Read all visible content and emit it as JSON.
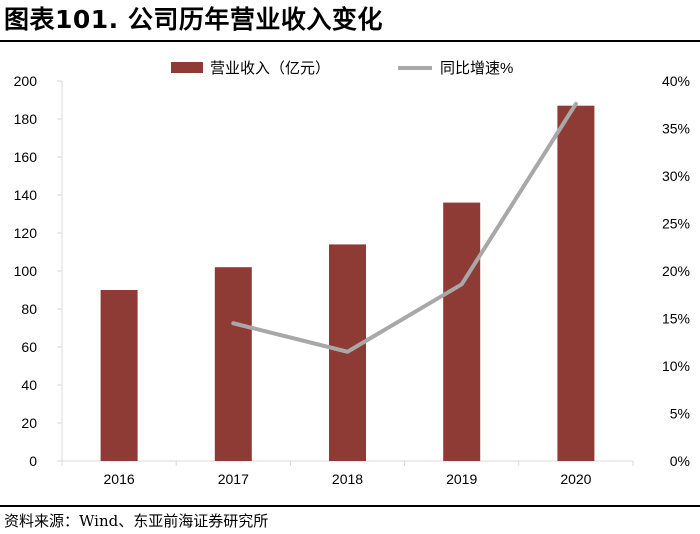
{
  "header": {
    "title": "图表101. 公司历年营业收入变化"
  },
  "footer": {
    "source": "资料来源：Wind、东亚前海证券研究所"
  },
  "colors": {
    "bar": "#8E3B36",
    "line": "#A8A8A8",
    "axis": "#D9D9D9"
  },
  "chart_data": {
    "type": "bar",
    "title": "",
    "categories": [
      "2016",
      "2017",
      "2018",
      "2019",
      "2020"
    ],
    "series": [
      {
        "name": "营业收入（亿元）",
        "type": "bar",
        "axis": "left",
        "values": [
          90,
          102,
          114,
          136,
          187
        ]
      },
      {
        "name": "同比增速%",
        "type": "line",
        "axis": "right",
        "values": [
          null,
          14.5,
          11.5,
          18.6,
          37.6
        ]
      }
    ],
    "y_left": {
      "min": 0,
      "max": 200,
      "step": 20,
      "tick_labels": [
        "0",
        "20",
        "40",
        "60",
        "80",
        "100",
        "120",
        "140",
        "160",
        "180",
        "200"
      ]
    },
    "y_right": {
      "min": 0,
      "max": 40,
      "step": 5,
      "tick_labels": [
        "0%",
        "5%",
        "10%",
        "15%",
        "20%",
        "25%",
        "30%",
        "35%",
        "40%"
      ]
    },
    "legend_position": "top-center",
    "grid": false
  }
}
